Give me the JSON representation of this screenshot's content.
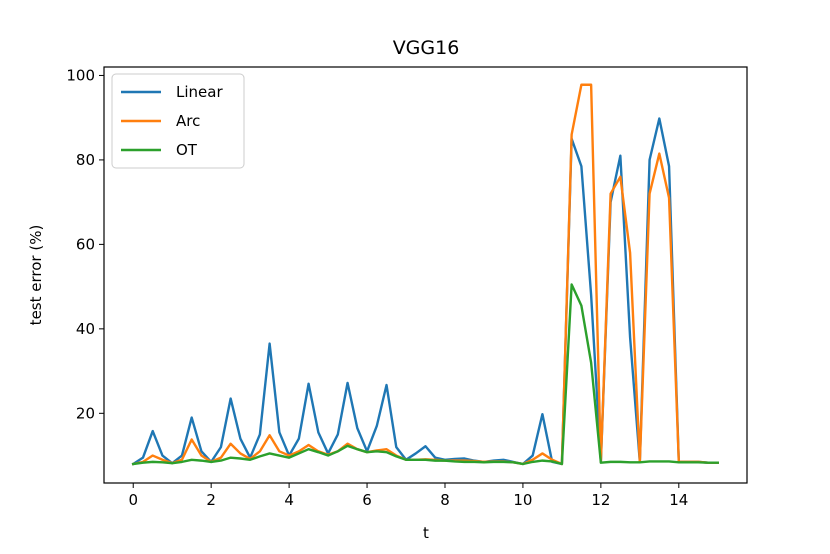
{
  "chart_data": {
    "type": "line",
    "title": "VGG16",
    "xlabel": "t",
    "ylabel": "test error (%)",
    "xlim": [
      -0.75,
      15.75
    ],
    "ylim": [
      3.5,
      102
    ],
    "xticks": [
      0,
      2,
      4,
      6,
      8,
      10,
      12,
      14
    ],
    "yticks": [
      20,
      40,
      60,
      80,
      100
    ],
    "legend": "top-left",
    "x": [
      0,
      0.25,
      0.5,
      0.75,
      1,
      1.25,
      1.5,
      1.75,
      2,
      2.25,
      2.5,
      2.75,
      3,
      3.25,
      3.5,
      3.75,
      4,
      4.25,
      4.5,
      4.75,
      5,
      5.25,
      5.5,
      5.75,
      6,
      6.25,
      6.5,
      6.75,
      7,
      7.25,
      7.5,
      7.75,
      8,
      8.25,
      8.5,
      8.75,
      9,
      9.25,
      9.5,
      9.75,
      10,
      10.25,
      10.5,
      10.75,
      11,
      11.25,
      11.5,
      11.75,
      12,
      12.25,
      12.5,
      12.75,
      13,
      13.25,
      13.5,
      13.75,
      14,
      14.25,
      14.5,
      14.75,
      15
    ],
    "series": [
      {
        "name": "Linear",
        "color": "#1f77b4",
        "values": [
          8,
          9.5,
          15.8,
          10,
          8.2,
          10,
          19,
          11,
          8.5,
          12,
          23.5,
          14,
          9.5,
          15,
          36.5,
          15.5,
          10,
          14,
          27,
          15.5,
          10.5,
          15,
          27.2,
          16.5,
          11,
          17,
          26.7,
          12,
          9,
          10.5,
          12.2,
          9.5,
          9,
          9.2,
          9.3,
          8.8,
          8.5,
          8.8,
          9,
          8.5,
          8,
          10,
          19.8,
          8.5,
          8,
          85,
          78.5,
          48,
          8.5,
          70,
          81,
          38,
          8.5,
          80,
          89.8,
          78.5,
          8.5,
          8.5,
          8.5,
          8.3,
          8.3
        ]
      },
      {
        "name": "Arc",
        "color": "#ff7f0e",
        "values": [
          8,
          8.5,
          10,
          9,
          8.2,
          9,
          13.8,
          10,
          8.5,
          9.5,
          12.8,
          10.5,
          9.2,
          11,
          14.8,
          11,
          10,
          11,
          12.5,
          11,
          10.2,
          11,
          12.8,
          11.5,
          10.8,
          11.2,
          11.5,
          10,
          9,
          9,
          9.1,
          9,
          8.8,
          8.8,
          8.8,
          8.7,
          8.5,
          8.6,
          8.6,
          8.4,
          8,
          9,
          10.5,
          9,
          8,
          86,
          97.8,
          97.8,
          8.5,
          72,
          76,
          58,
          8.5,
          72,
          81.5,
          71,
          8.5,
          8.5,
          8.5,
          8.3,
          8.3
        ]
      },
      {
        "name": "OT",
        "color": "#2ca02c",
        "values": [
          8,
          8.3,
          8.5,
          8.4,
          8.2,
          8.5,
          9,
          8.8,
          8.5,
          8.8,
          9.5,
          9.3,
          9,
          9.8,
          10.5,
          10,
          9.5,
          10.5,
          11.5,
          10.8,
          10,
          11,
          12.3,
          11.5,
          10.8,
          11,
          10.8,
          9.8,
          9,
          9,
          9,
          8.8,
          8.8,
          8.6,
          8.5,
          8.5,
          8.4,
          8.5,
          8.5,
          8.4,
          8,
          8.5,
          8.8,
          8.6,
          8,
          50.5,
          45.5,
          32,
          8.3,
          8.5,
          8.5,
          8.4,
          8.4,
          8.6,
          8.6,
          8.6,
          8.4,
          8.4,
          8.4,
          8.3,
          8.3
        ]
      }
    ]
  }
}
